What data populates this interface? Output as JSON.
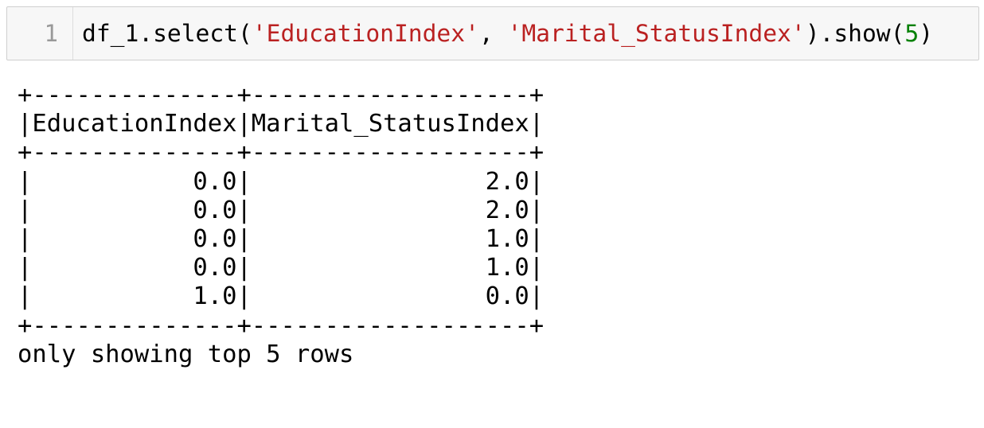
{
  "cell": {
    "line_number": "1",
    "code": [
      "df_1.select(",
      "'EducationIndex'",
      ", ",
      "'Marital_StatusIndex'",
      ").show(",
      "5",
      ")"
    ]
  },
  "output": {
    "lines": [
      "+--------------+-------------------+",
      "|EducationIndex|Marital_StatusIndex|",
      "+--------------+-------------------+",
      "|           0.0|                2.0|",
      "|           0.0|                2.0|",
      "|           0.0|                1.0|",
      "|           0.0|                1.0|",
      "|           1.0|                0.0|",
      "+--------------+-------------------+",
      "only showing top 5 rows"
    ]
  }
}
